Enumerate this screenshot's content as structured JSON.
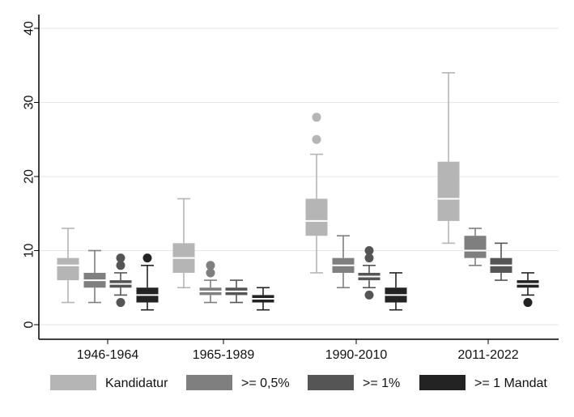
{
  "chart_data": {
    "type": "box",
    "title": "",
    "xlabel": "",
    "ylabel": "",
    "ylim": [
      0,
      40
    ],
    "yticks": [
      "0",
      "10",
      "20",
      "30",
      "40"
    ],
    "grid": true,
    "legend_position": "bottom",
    "categories": [
      "1946-1964",
      "1965-1989",
      "1990-2010",
      "2011-2022"
    ],
    "series": [
      {
        "name": "Kandidatur",
        "color": "#b5b5b5",
        "boxes": [
          {
            "min": 3,
            "q1": 6,
            "median": 8,
            "q3": 9,
            "max": 13,
            "outliers": []
          },
          {
            "min": 5,
            "q1": 7,
            "median": 9,
            "q3": 11,
            "max": 17,
            "outliers": []
          },
          {
            "min": 7,
            "q1": 12,
            "median": 14,
            "q3": 17,
            "max": 23,
            "outliers": [
              25,
              28
            ]
          },
          {
            "min": 11,
            "q1": 14,
            "median": 17,
            "q3": 22,
            "max": 34,
            "outliers": []
          }
        ]
      },
      {
        "name": ">= 0,5%",
        "color": "#7f7f7f",
        "boxes": [
          {
            "min": 3,
            "q1": 5,
            "median": 6,
            "q3": 7,
            "max": 10,
            "outliers": []
          },
          {
            "min": 3,
            "q1": 4,
            "median": 4.5,
            "q3": 5,
            "max": 6,
            "outliers": [
              7,
              8
            ]
          },
          {
            "min": 5,
            "q1": 7,
            "median": 8,
            "q3": 9,
            "max": 12,
            "outliers": []
          },
          {
            "min": 8,
            "q1": 9,
            "median": 10,
            "q3": 12,
            "max": 13,
            "outliers": []
          }
        ]
      },
      {
        "name": ">= 1%",
        "color": "#555555",
        "boxes": [
          {
            "min": 4,
            "q1": 5,
            "median": 5.5,
            "q3": 6,
            "max": 7,
            "outliers": [
              3,
              8,
              9
            ]
          },
          {
            "min": 3,
            "q1": 4,
            "median": 4.5,
            "q3": 5,
            "max": 6,
            "outliers": []
          },
          {
            "min": 5,
            "q1": 6,
            "median": 6.5,
            "q3": 7,
            "max": 8,
            "outliers": [
              4,
              9,
              10
            ]
          },
          {
            "min": 6,
            "q1": 7,
            "median": 8,
            "q3": 9,
            "max": 11,
            "outliers": []
          }
        ]
      },
      {
        "name": ">= 1 Mandat",
        "color": "#232323",
        "boxes": [
          {
            "min": 2,
            "q1": 3,
            "median": 4,
            "q3": 5,
            "max": 8,
            "outliers": [
              9
            ]
          },
          {
            "min": 2,
            "q1": 3,
            "median": 3.5,
            "q3": 4,
            "max": 5,
            "outliers": []
          },
          {
            "min": 2,
            "q1": 3,
            "median": 4,
            "q3": 5,
            "max": 7,
            "outliers": []
          },
          {
            "min": 4,
            "q1": 5,
            "median": 5.5,
            "q3": 6,
            "max": 7,
            "outliers": [
              3
            ]
          }
        ]
      }
    ]
  }
}
